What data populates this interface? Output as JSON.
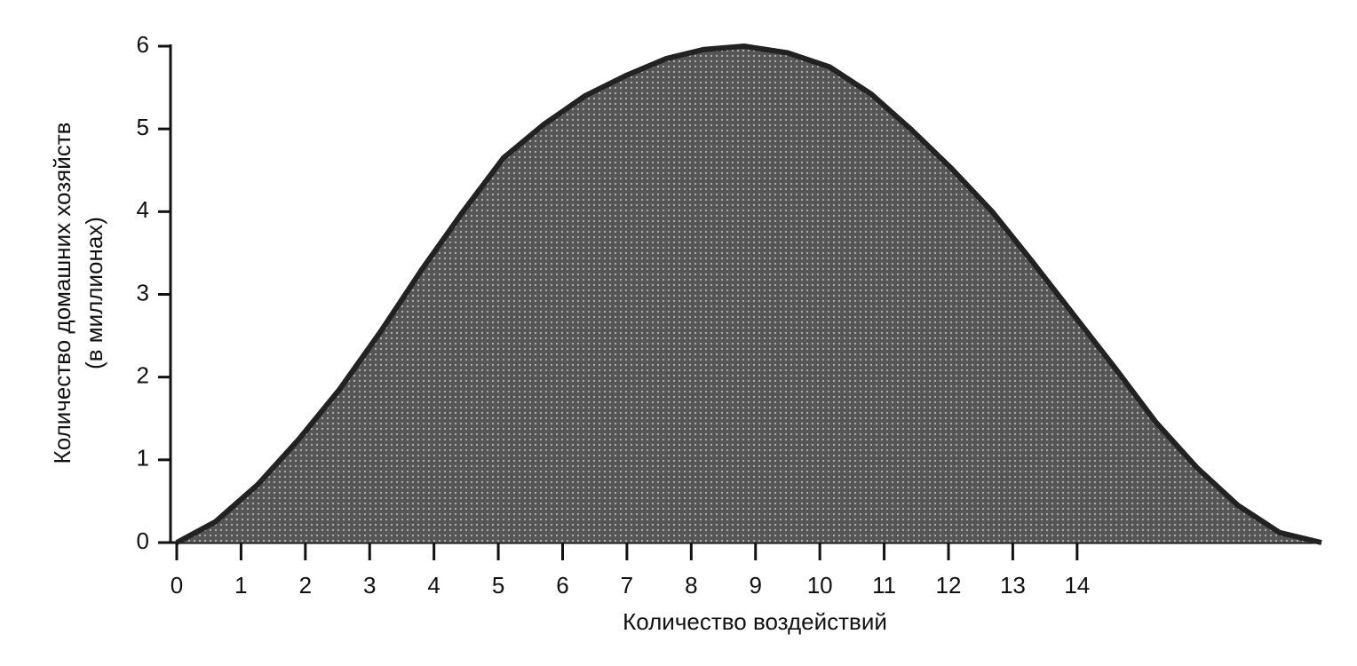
{
  "chart_data": {
    "type": "area",
    "xlabel": "Количество воздействий",
    "ylabel": [
      "Количество домашних хозяйств",
      "(в миллионах)"
    ],
    "x": [
      0,
      0.6,
      1.26,
      1.9,
      2.53,
      3.17,
      3.81,
      4.45,
      5.08,
      5.7,
      6.35,
      7.0,
      7.61,
      8.2,
      8.82,
      9.5,
      10.15,
      10.8,
      11.41,
      12.05,
      12.68,
      13.3,
      13.95,
      14.6,
      15.23,
      15.87,
      16.5,
      17.15,
      17.8
    ],
    "series": [
      {
        "color": "#222222",
        "values": [
          0,
          0.25,
          0.7,
          1.25,
          1.85,
          2.55,
          3.3,
          4.0,
          4.65,
          5.05,
          5.4,
          5.65,
          5.85,
          5.96,
          6.0,
          5.92,
          5.75,
          5.42,
          5.0,
          4.52,
          4.0,
          3.4,
          2.75,
          2.1,
          1.45,
          0.9,
          0.45,
          0.12,
          0
        ]
      }
    ],
    "xlim": [
      0,
      17.8
    ],
    "xticks": [
      0,
      1,
      2,
      3,
      4,
      5,
      6,
      7,
      8,
      9,
      10,
      11,
      12,
      13,
      14
    ],
    "ylim": [
      0,
      6
    ],
    "yticks": [
      0,
      1,
      2,
      3,
      4,
      5,
      6
    ],
    "grid": false
  }
}
